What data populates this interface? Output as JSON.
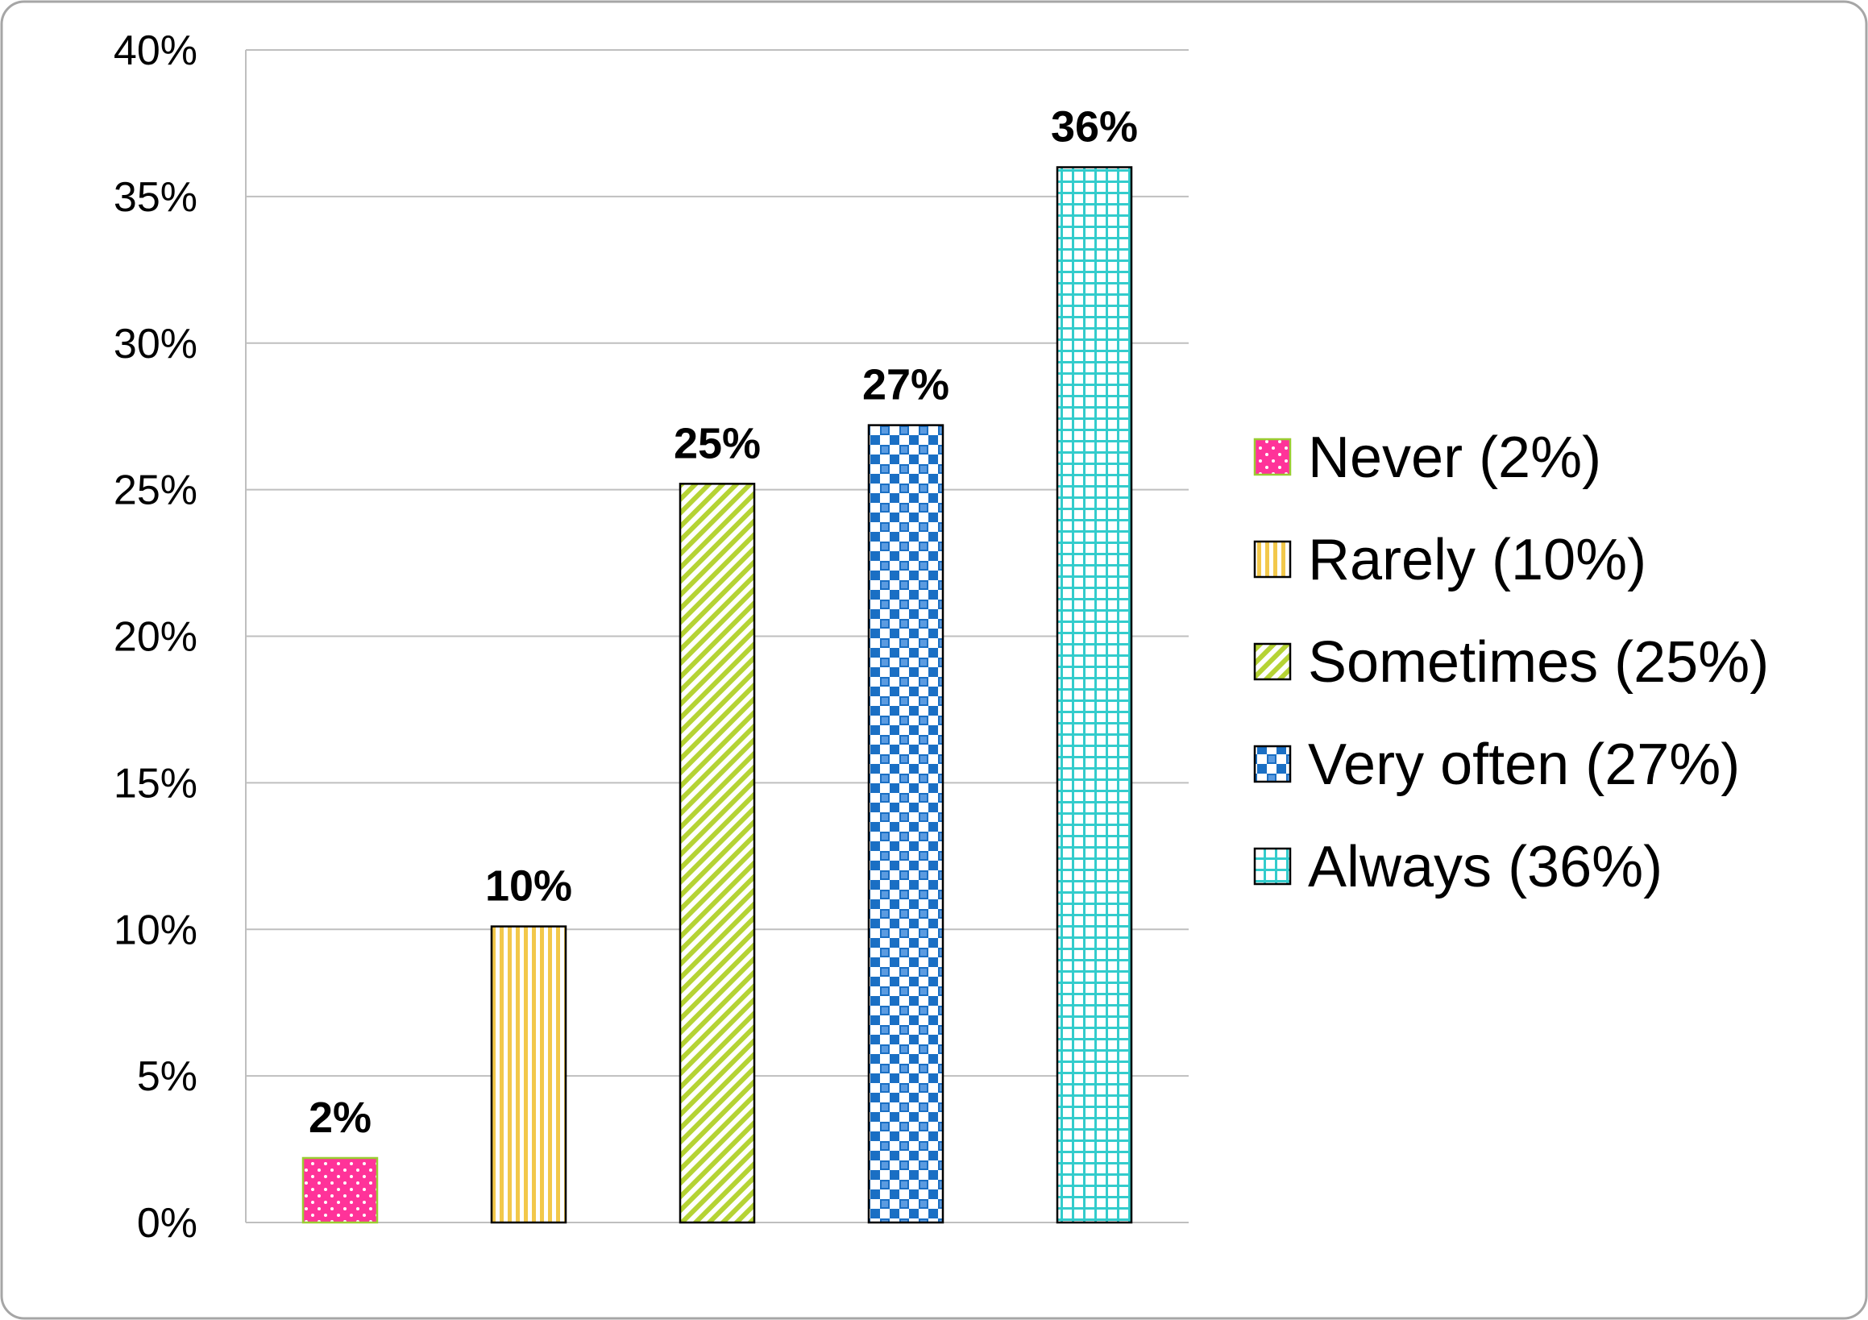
{
  "chart_data": {
    "type": "bar",
    "categories": [
      "Never (2%)",
      "Rarely (10%)",
      "Sometimes (25%)",
      "Very often (27%)",
      "Always (36%)"
    ],
    "values": [
      2.2,
      10.1,
      25.2,
      27.2,
      36.0
    ],
    "data_labels": [
      "2%",
      "10%",
      "25%",
      "27%",
      "36%"
    ],
    "ylim": [
      0,
      40
    ],
    "yticks": [
      0,
      5,
      10,
      15,
      20,
      25,
      30,
      35,
      40
    ],
    "ytick_labels": [
      "0%",
      "5%",
      "10%",
      "15%",
      "20%",
      "25%",
      "30%",
      "35%",
      "40%"
    ],
    "grid": true,
    "legend": "right",
    "title": "",
    "xlabel": "",
    "ylabel": "",
    "colors": [
      "#ff3399",
      "#f2c84b",
      "#b5d334",
      "#1a6fc4",
      "#33cccc"
    ],
    "patterns": [
      "dots",
      "vertical-stripes",
      "diagonal-stripes",
      "checker",
      "grid"
    ]
  }
}
